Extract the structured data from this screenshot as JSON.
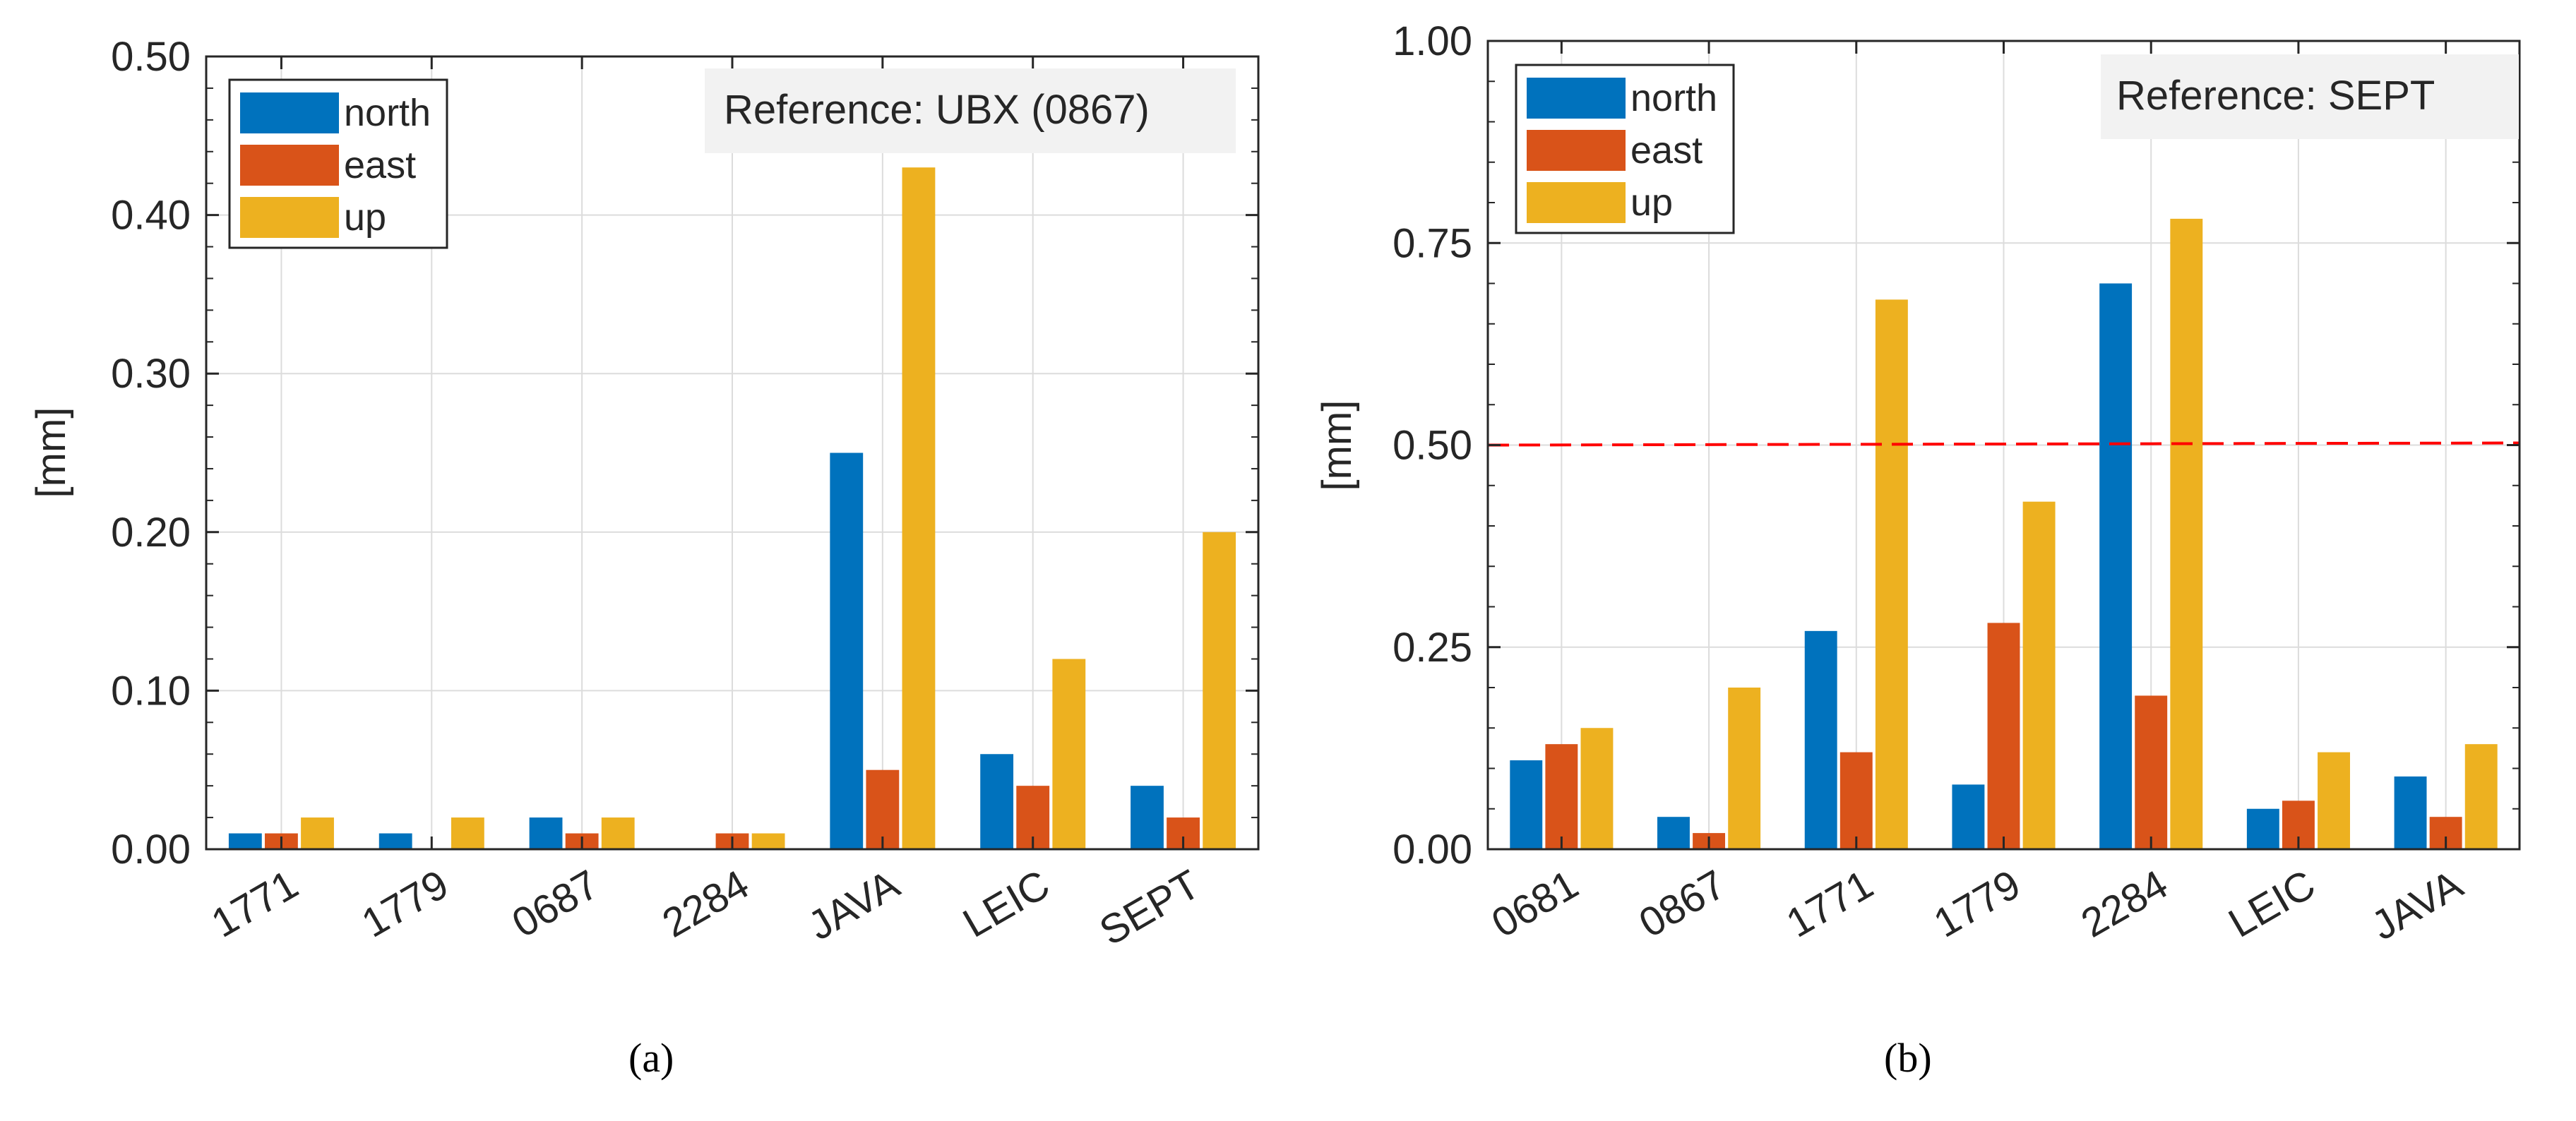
{
  "colors": {
    "north": "#0072BD",
    "east": "#D95319",
    "up": "#EDB120",
    "threshold": "#FF0000",
    "grid": "#DCDCDC",
    "axis": "#262626",
    "ref_box": "#F2F2F2"
  },
  "chart_data": [
    {
      "type": "bar",
      "caption": "(a)",
      "reference_label": "Reference: UBX (0867)",
      "xlabel": "",
      "ylabel": "[mm]",
      "ylim": [
        0,
        0.5
      ],
      "yticks": [
        0,
        0.1,
        0.2,
        0.3,
        0.4,
        0.5
      ],
      "ytick_labels": [
        "0.00",
        "0.10",
        "0.20",
        "0.30",
        "0.40",
        "0.50"
      ],
      "categories": [
        "1771",
        "1779",
        "0687",
        "2284",
        "JAVA",
        "LEIC",
        "SEPT"
      ],
      "series": [
        {
          "name": "north",
          "values": [
            0.01,
            0.01,
            0.02,
            0.0,
            0.25,
            0.06,
            0.04
          ]
        },
        {
          "name": "east",
          "values": [
            0.01,
            0.0,
            0.01,
            0.01,
            0.05,
            0.04,
            0.02
          ]
        },
        {
          "name": "up",
          "values": [
            0.02,
            0.02,
            0.02,
            0.01,
            0.43,
            0.12,
            0.2
          ]
        }
      ],
      "threshold": null,
      "legend_position": "top-left",
      "grid": true
    },
    {
      "type": "bar",
      "caption": "(b)",
      "reference_label": "Reference: SEPT",
      "xlabel": "",
      "ylabel": "[mm]",
      "ylim": [
        0,
        1.0
      ],
      "yticks": [
        0,
        0.25,
        0.5,
        0.75,
        1.0
      ],
      "ytick_labels": [
        "0.00",
        "0.25",
        "0.50",
        "0.75",
        "1.00"
      ],
      "categories": [
        "0681",
        "0867",
        "1771",
        "1779",
        "2284",
        "LEIC",
        "JAVA"
      ],
      "series": [
        {
          "name": "north",
          "values": [
            0.11,
            0.04,
            0.27,
            0.08,
            0.7,
            0.05,
            0.09
          ]
        },
        {
          "name": "east",
          "values": [
            0.13,
            0.02,
            0.12,
            0.28,
            0.19,
            0.06,
            0.04
          ]
        },
        {
          "name": "up",
          "values": [
            0.15,
            0.2,
            0.68,
            0.43,
            0.78,
            0.12,
            0.13
          ]
        }
      ],
      "threshold": 0.5,
      "legend_position": "top-left",
      "grid": true
    }
  ]
}
